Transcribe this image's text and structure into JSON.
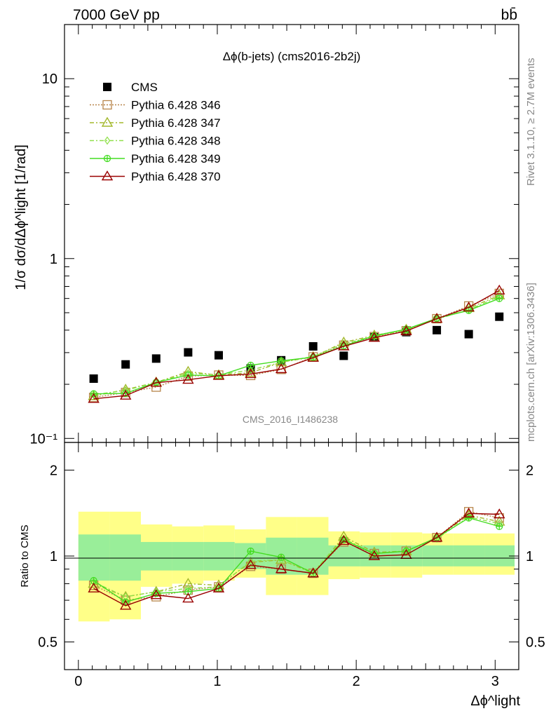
{
  "header": {
    "energy_label": "7000 GeV pp",
    "process_label": "bb̄"
  },
  "side_text": {
    "rivet": "Rivet 3.1.10, ≥ 2.7M events",
    "source": "mcplots.cern.ch [arXiv:1306.3436]"
  },
  "watermark": "CMS_2016_I1486238",
  "chart_data": [
    {
      "type": "scatter",
      "title": "Δϕ(b-jets) (cms2016-2b2j)",
      "ylabel": "1/σ dσ/dΔϕ^light [1/rad]",
      "xlabel": "",
      "yscale": "log",
      "xlim": [
        -0.1,
        3.17
      ],
      "ylim": [
        0.095,
        20
      ],
      "y_ticks": [
        {
          "value": 0.1,
          "label": "10⁻¹"
        },
        {
          "value": 1,
          "label": "1"
        },
        {
          "value": 10,
          "label": "10"
        }
      ],
      "x": [
        0.11,
        0.34,
        0.56,
        0.79,
        1.01,
        1.24,
        1.46,
        1.69,
        1.91,
        2.13,
        2.36,
        2.58,
        2.81,
        3.03
      ],
      "series": [
        {
          "name": "CMS",
          "color": "#000000",
          "marker": "square",
          "line": "none",
          "values": [
            0.215,
            0.258,
            0.278,
            0.301,
            0.29,
            0.245,
            0.272,
            0.325,
            0.288,
            0.365,
            0.39,
            0.4,
            0.38,
            0.475
          ]
        },
        {
          "name": "Pythia 6.428 346",
          "color": "#b8864b",
          "marker": "open-square",
          "line": "dotted",
          "values": [
            0.169,
            0.18,
            0.193,
            0.222,
            0.225,
            0.224,
            0.242,
            0.284,
            0.33,
            0.368,
            0.397,
            0.463,
            0.545,
            0.64
          ]
        },
        {
          "name": "Pythia 6.428 347",
          "color": "#a3b82b",
          "marker": "open-triangle",
          "line": "dash-dot",
          "values": [
            0.172,
            0.187,
            0.205,
            0.235,
            0.225,
            0.232,
            0.265,
            0.284,
            0.342,
            0.374,
            0.403,
            0.463,
            0.53,
            0.625
          ]
        },
        {
          "name": "Pythia 6.428 348",
          "color": "#8fe04a",
          "marker": "open-diamond",
          "line": "dash-dot",
          "values": [
            0.175,
            0.185,
            0.205,
            0.23,
            0.226,
            0.24,
            0.265,
            0.286,
            0.336,
            0.37,
            0.4,
            0.46,
            0.52,
            0.615
          ]
        },
        {
          "name": "Pythia 6.428 349",
          "color": "#44dd22",
          "marker": "cross-circle",
          "line": "solid",
          "values": [
            0.177,
            0.178,
            0.205,
            0.225,
            0.223,
            0.255,
            0.27,
            0.283,
            0.327,
            0.372,
            0.405,
            0.465,
            0.515,
            0.6
          ]
        },
        {
          "name": "Pythia 6.428 370",
          "color": "#990000",
          "marker": "open-triangle",
          "line": "solid",
          "values": [
            0.166,
            0.173,
            0.204,
            0.212,
            0.223,
            0.228,
            0.243,
            0.281,
            0.325,
            0.363,
            0.395,
            0.463,
            0.535,
            0.665
          ]
        }
      ]
    },
    {
      "type": "scatter",
      "title": "",
      "ylabel": "Ratio to CMS",
      "xlabel": "Δϕ^light",
      "yscale": "log",
      "xlim": [
        -0.1,
        3.17
      ],
      "ylim": [
        0.4,
        2.5
      ],
      "y_ticks": [
        {
          "value": 0.5,
          "label": "0.5"
        },
        {
          "value": 1,
          "label": "1"
        },
        {
          "value": 2,
          "label": "2"
        }
      ],
      "x_ticks": [
        0,
        1,
        2,
        3
      ],
      "x_edges": [
        0.0,
        0.45,
        0.9,
        1.8,
        2.25,
        2.7,
        3.14
      ],
      "bin_edges": [
        0.0,
        0.225,
        0.45,
        0.675,
        0.9,
        1.125,
        1.35,
        1.575,
        1.8,
        2.025,
        2.25,
        2.475,
        2.7,
        2.925,
        3.14
      ],
      "band_yellow": [
        [
          0.59,
          1.43
        ],
        [
          0.6,
          1.43
        ],
        [
          0.78,
          1.29
        ],
        [
          0.8,
          1.27
        ],
        [
          0.82,
          1.28
        ],
        [
          0.84,
          1.24
        ],
        [
          0.73,
          1.37
        ],
        [
          0.73,
          1.37
        ],
        [
          0.83,
          1.22
        ],
        [
          0.84,
          1.21
        ],
        [
          0.84,
          1.21
        ],
        [
          0.86,
          1.2
        ],
        [
          0.86,
          1.2
        ],
        [
          0.86,
          1.2
        ]
      ],
      "band_green": [
        [
          0.82,
          1.19
        ],
        [
          0.82,
          1.19
        ],
        [
          0.89,
          1.12
        ],
        [
          0.89,
          1.12
        ],
        [
          0.89,
          1.12
        ],
        [
          0.9,
          1.11
        ],
        [
          0.86,
          1.16
        ],
        [
          0.86,
          1.16
        ],
        [
          0.92,
          1.09
        ],
        [
          0.92,
          1.09
        ],
        [
          0.92,
          1.09
        ],
        [
          0.92,
          1.09
        ],
        [
          0.92,
          1.09
        ],
        [
          0.92,
          1.09
        ]
      ],
      "x": [
        0.11,
        0.34,
        0.56,
        0.79,
        1.01,
        1.24,
        1.46,
        1.69,
        1.91,
        2.13,
        2.36,
        2.58,
        2.81,
        3.03
      ],
      "series": [
        {
          "name": "Pythia 6.428 346",
          "color": "#b8864b",
          "marker": "open-square",
          "line": "dotted",
          "values": [
            0.79,
            0.7,
            0.72,
            0.76,
            0.78,
            0.92,
            0.9,
            0.87,
            1.12,
            1.02,
            1.04,
            1.16,
            1.43,
            1.36
          ]
        },
        {
          "name": "Pythia 6.428 347",
          "color": "#a3b82b",
          "marker": "open-triangle",
          "line": "dash-dot",
          "values": [
            0.8,
            0.72,
            0.75,
            0.8,
            0.79,
            0.95,
            0.97,
            0.87,
            1.17,
            1.03,
            1.04,
            1.16,
            1.39,
            1.32
          ]
        },
        {
          "name": "Pythia 6.428 348",
          "color": "#8fe04a",
          "marker": "open-diamond",
          "line": "dash-dot",
          "values": [
            0.81,
            0.72,
            0.75,
            0.77,
            0.78,
            0.96,
            0.97,
            0.88,
            1.15,
            1.02,
            1.04,
            1.15,
            1.37,
            1.3
          ]
        },
        {
          "name": "Pythia 6.428 349",
          "color": "#44dd22",
          "marker": "cross-circle",
          "line": "solid",
          "values": [
            0.82,
            0.69,
            0.74,
            0.75,
            0.77,
            1.04,
            0.99,
            0.87,
            1.14,
            1.02,
            1.04,
            1.16,
            1.36,
            1.27
          ]
        },
        {
          "name": "Pythia 6.428 370",
          "color": "#990000",
          "marker": "open-triangle",
          "line": "solid",
          "values": [
            0.77,
            0.67,
            0.73,
            0.71,
            0.77,
            0.93,
            0.9,
            0.87,
            1.13,
            1.0,
            1.01,
            1.16,
            1.41,
            1.4
          ]
        }
      ]
    }
  ]
}
